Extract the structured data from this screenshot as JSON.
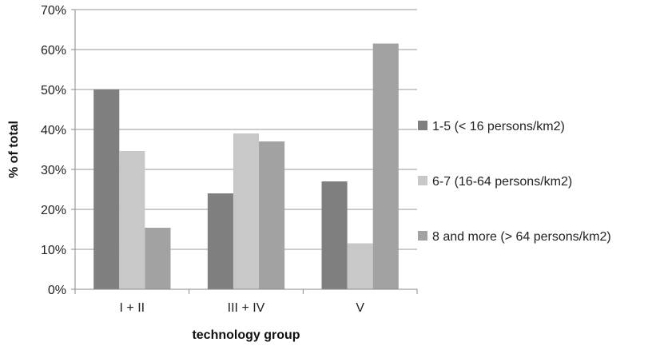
{
  "chart_data": {
    "type": "bar",
    "title": "",
    "xlabel": "technology group",
    "ylabel": "% of total",
    "categories": [
      "I + II",
      "III + IV",
      "V"
    ],
    "y_ticks": [
      "0%",
      "10%",
      "20%",
      "30%",
      "40%",
      "50%",
      "60%",
      "70%"
    ],
    "ylim": [
      0,
      70
    ],
    "grid": "horizontal",
    "legend_position": "right",
    "series": [
      {
        "name": "1-5 (< 16 persons/km2)",
        "color": "#7f7f7f",
        "values": [
          50,
          24,
          27
        ]
      },
      {
        "name": "6-7 (16-64 persons/km2)",
        "color": "#c8c8c8",
        "values": [
          34.6,
          39,
          11.5
        ]
      },
      {
        "name": "8 and more (> 64 persons/km2)",
        "color": "#a2a2a2",
        "values": [
          15.4,
          37,
          61.5
        ]
      }
    ]
  }
}
